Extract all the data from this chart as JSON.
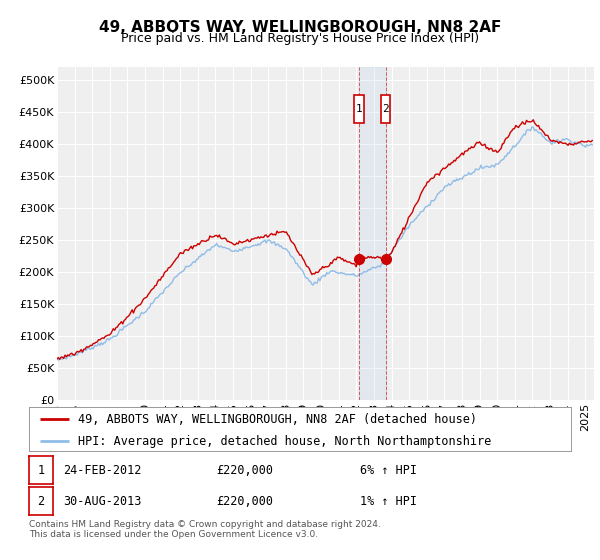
{
  "title": "49, ABBOTS WAY, WELLINGBOROUGH, NN8 2AF",
  "subtitle": "Price paid vs. HM Land Registry's House Price Index (HPI)",
  "ylabel_ticks": [
    "£0",
    "£50K",
    "£100K",
    "£150K",
    "£200K",
    "£250K",
    "£300K",
    "£350K",
    "£400K",
    "£450K",
    "£500K"
  ],
  "ytick_vals": [
    0,
    50000,
    100000,
    150000,
    200000,
    250000,
    300000,
    350000,
    400000,
    450000,
    500000
  ],
  "ylim": [
    0,
    520000
  ],
  "xlim_start": 1995.0,
  "xlim_end": 2025.5,
  "background_color": "#ffffff",
  "plot_bg_color": "#efefef",
  "grid_color": "#ffffff",
  "line1_color": "#cc0000",
  "line2_color": "#90bce8",
  "line1_label": "49, ABBOTS WAY, WELLINGBOROUGH, NN8 2AF (detached house)",
  "line2_label": "HPI: Average price, detached house, North Northamptonshire",
  "sale1_date_x": 2012.13,
  "sale1_y": 220000,
  "sale2_date_x": 2013.66,
  "sale2_y": 220000,
  "sale1_label": "1",
  "sale2_label": "2",
  "annotation1_date": "24-FEB-2012",
  "annotation1_price": "£220,000",
  "annotation1_hpi": "6% ↑ HPI",
  "annotation2_date": "30-AUG-2013",
  "annotation2_price": "£220,000",
  "annotation2_hpi": "1% ↑ HPI",
  "footer": "Contains HM Land Registry data © Crown copyright and database right 2024.\nThis data is licensed under the Open Government Licence v3.0.",
  "title_fontsize": 11,
  "subtitle_fontsize": 9,
  "tick_fontsize": 8,
  "legend_fontsize": 8.5,
  "annotation_fontsize": 8.5
}
